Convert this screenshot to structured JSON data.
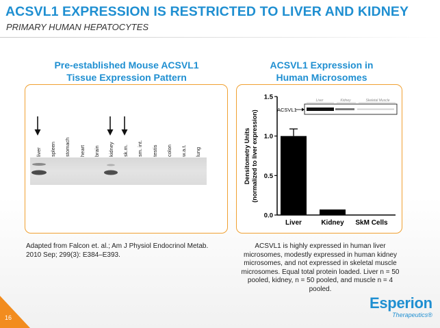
{
  "slide": {
    "title": "ACSVL1 EXPRESSION IS RESTRICTED TO LIVER AND KIDNEY",
    "subtitle": "PRIMARY HUMAN HEPATOCYTES",
    "page_number": "16",
    "accent_color": "#1f8fd1",
    "frame_color": "#f0a030"
  },
  "left_panel": {
    "title_line1": "Pre-established Mouse ACSVL1",
    "title_line2": "Tissue Expression Pattern",
    "tissues": [
      "liver",
      "spleen",
      "stomach",
      "heart",
      "brain",
      "kidney",
      "sk.m.",
      "sm. int.",
      "testis",
      "colon",
      "w.a.t.",
      "lung"
    ],
    "arrow_marked": [
      "liver",
      "kidney",
      "sk.m."
    ],
    "caption": "Adapted from Falcon et. al.; Am J Physiol Endocrinol Metab. 2010 Sep; 299(3): E384–E393."
  },
  "right_panel": {
    "title_line1": "ACSVL1 Expression in",
    "title_line2": "Human Microsomes",
    "caption": "ACSVL1 is highly expressed in human liver microsomes, modestly expressed in human kidney microsomes, and not expressed in skeletal muscle microsomes. Equal total protein loaded.  Liver n = 50 pooled, kidney, n = 50 pooled, and muscle n = 4 pooled."
  },
  "chart_data": {
    "type": "bar",
    "categories": [
      "Liver",
      "Kidney",
      "SkM Cells"
    ],
    "values": [
      1.0,
      0.07,
      0.0
    ],
    "error": [
      0.09,
      0.0,
      0.0
    ],
    "ylabel_line1": "Densitometry Units",
    "ylabel_line2": "(normalized to liver expression)",
    "ylim": [
      0,
      1.5
    ],
    "yticks": [
      "0.0",
      "0.5",
      "1.0",
      "1.5"
    ],
    "ytick_values": [
      0,
      0.5,
      1.0,
      1.5
    ],
    "bar_color": "#000000",
    "inset_blot": {
      "label": "ACSVL1",
      "lanes": [
        "Liver",
        "Kidney",
        "Skeletal Muscle"
      ]
    }
  },
  "logo": {
    "name": "Esperion",
    "tagline": "Therapeutics®"
  }
}
